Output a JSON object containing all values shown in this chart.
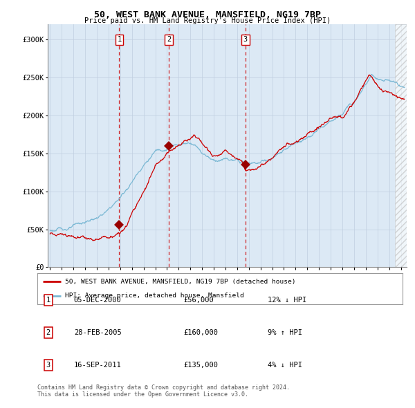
{
  "title": "50, WEST BANK AVENUE, MANSFIELD, NG19 7BP",
  "subtitle": "Price paid vs. HM Land Registry's House Price Index (HPI)",
  "bg_color": "#dce9f5",
  "hpi_color": "#7ab8d4",
  "price_color": "#cc0000",
  "marker_color": "#990000",
  "vline_color": "#cc0000",
  "transactions": [
    {
      "label": "1",
      "date": "05-DEC-2000",
      "price": 56000,
      "x_year": 2000.92
    },
    {
      "label": "2",
      "date": "28-FEB-2005",
      "price": 160000,
      "x_year": 2005.16
    },
    {
      "label": "3",
      "date": "16-SEP-2011",
      "price": 135000,
      "x_year": 2011.71
    }
  ],
  "legend_entries": [
    "50, WEST BANK AVENUE, MANSFIELD, NG19 7BP (detached house)",
    "HPI: Average price, detached house, Mansfield"
  ],
  "table_rows": [
    [
      "1",
      "05-DEC-2000",
      "£56,000",
      "12% ↓ HPI"
    ],
    [
      "2",
      "28-FEB-2005",
      "£160,000",
      "9% ↑ HPI"
    ],
    [
      "3",
      "16-SEP-2011",
      "£135,000",
      "4% ↓ HPI"
    ]
  ],
  "footer": "Contains HM Land Registry data © Crown copyright and database right 2024.\nThis data is licensed under the Open Government Licence v3.0.",
  "ylim": [
    0,
    320000
  ],
  "yticks": [
    0,
    50000,
    100000,
    150000,
    200000,
    250000,
    300000
  ],
  "ytick_labels": [
    "£0",
    "£50K",
    "£100K",
    "£150K",
    "£200K",
    "£250K",
    "£300K"
  ],
  "xlim_start": 1994.8,
  "xlim_end": 2025.5,
  "hatch_start": 2024.5
}
